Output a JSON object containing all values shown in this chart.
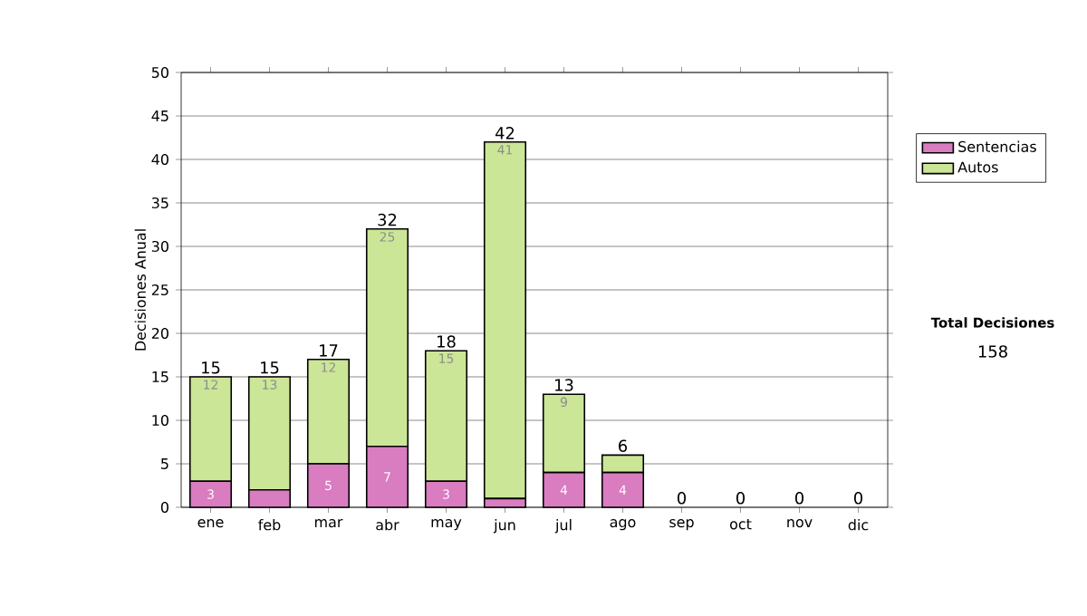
{
  "chart_data": {
    "type": "bar",
    "stacked": true,
    "ylabel": "Decisiones Anual",
    "categories": [
      "ene",
      "feb",
      "mar",
      "abr",
      "may",
      "jun",
      "jul",
      "ago",
      "sep",
      "oct",
      "nov",
      "dic"
    ],
    "series": [
      {
        "name": "Sentencias",
        "color": "#d97cc0",
        "values": [
          3,
          2,
          5,
          7,
          3,
          1,
          4,
          4,
          0,
          0,
          0,
          0
        ],
        "value_labels": [
          "3",
          null,
          "5",
          "7",
          "3",
          null,
          "4",
          "4",
          null,
          null,
          null,
          null
        ]
      },
      {
        "name": "Autos",
        "color": "#cce698",
        "values": [
          12,
          13,
          12,
          25,
          15,
          41,
          9,
          2,
          0,
          0,
          0,
          0
        ],
        "value_labels": [
          "12",
          "13",
          "12",
          "25",
          "15",
          "41",
          "9",
          null,
          null,
          null,
          null,
          null
        ]
      }
    ],
    "totals": [
      "15",
      "15",
      "17",
      "32",
      "18",
      "42",
      "13",
      "6",
      "0",
      "0",
      "0",
      "0"
    ],
    "ylim": [
      0,
      50
    ],
    "yticks": [
      0,
      5,
      10,
      15,
      20,
      25,
      30,
      35,
      40,
      45,
      50
    ],
    "grid": "y",
    "legend": "right",
    "annotations": [
      "Total Decisiones",
      "158"
    ]
  }
}
